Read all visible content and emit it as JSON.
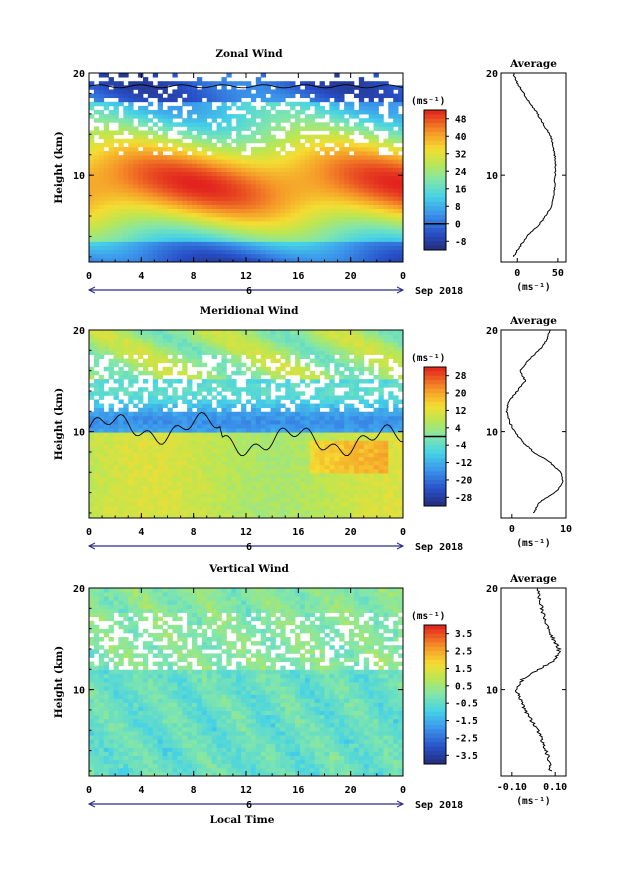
{
  "common": {
    "ylabel": "Height (km)",
    "xlabel": "Local Time",
    "date_label": "Sep 2018",
    "day_label": "6",
    "xticks": [
      "0",
      "4",
      "8",
      "12",
      "16",
      "20",
      "0"
    ],
    "yticks": [
      "10",
      "20"
    ],
    "unit_label": "(ms⁻¹)",
    "avg_title": "Average"
  },
  "chart_data": [
    {
      "type": "heatmap",
      "title": "Zonal Wind",
      "xlabel": "",
      "ylabel": "Height (km)",
      "xlim": [
        0,
        24
      ],
      "ylim": [
        1.5,
        20
      ],
      "colorbar_ticks": [
        "48",
        "40",
        "32",
        "24",
        "16",
        "8",
        "0",
        "-8"
      ],
      "colorbar_range": [
        -12,
        52
      ],
      "zero_contour": true,
      "profile": {
        "title": "Average",
        "xticks": [
          "0",
          "50"
        ],
        "xlim": [
          -20,
          60
        ],
        "heights": [
          2,
          3,
          4,
          5,
          6,
          7,
          8,
          9,
          10,
          11,
          12,
          13,
          14,
          15,
          16,
          17,
          18,
          19,
          20
        ],
        "values": [
          -5,
          3,
          12,
          25,
          35,
          42,
          45,
          46,
          47,
          47,
          46,
          44,
          40,
          32,
          25,
          16,
          8,
          0,
          -5
        ]
      }
    },
    {
      "type": "heatmap",
      "title": "Meridional Wind",
      "xlabel": "",
      "ylabel": "Height (km)",
      "xlim": [
        0,
        24
      ],
      "ylim": [
        1.5,
        20
      ],
      "colorbar_ticks": [
        "28",
        "20",
        "12",
        "4",
        "-4",
        "-12",
        "-20",
        "-28"
      ],
      "colorbar_range": [
        -32,
        32
      ],
      "zero_contour": true,
      "profile": {
        "title": "Average",
        "xticks": [
          "0",
          "10"
        ],
        "xlim": [
          -2,
          10
        ],
        "heights": [
          2,
          3,
          4,
          5,
          6,
          7,
          8,
          9,
          10,
          11,
          12,
          13,
          14,
          15,
          16,
          17,
          18,
          19,
          20
        ],
        "values": [
          4,
          5,
          8,
          9.5,
          9,
          7,
          4,
          2,
          0.5,
          -0.5,
          -1,
          -0.5,
          1,
          2.5,
          1.5,
          3,
          5,
          6.5,
          7
        ]
      }
    },
    {
      "type": "heatmap",
      "title": "Vertical Wind",
      "xlabel": "Local Time",
      "ylabel": "Height (km)",
      "xlim": [
        0,
        24
      ],
      "ylim": [
        1.5,
        20
      ],
      "colorbar_ticks": [
        "3.5",
        "2.5",
        "1.5",
        "0.5",
        "-0.5",
        "-1.5",
        "-2.5",
        "-3.5"
      ],
      "colorbar_range": [
        -4,
        4
      ],
      "zero_contour": false,
      "profile": {
        "title": "Average",
        "xticks": [
          "-0.10",
          "0.10"
        ],
        "xlim": [
          -0.15,
          0.15
        ],
        "heights": [
          2,
          3,
          4,
          5,
          6,
          7,
          8,
          9,
          10,
          11,
          12,
          13,
          14,
          15,
          16,
          17,
          18,
          19,
          20
        ],
        "values": [
          0.08,
          0.07,
          0.06,
          0.04,
          0.02,
          -0.01,
          -0.04,
          -0.06,
          -0.08,
          -0.05,
          0.03,
          0.1,
          0.12,
          0.09,
          0.07,
          0.05,
          0.04,
          0.03,
          0.02
        ]
      }
    }
  ]
}
